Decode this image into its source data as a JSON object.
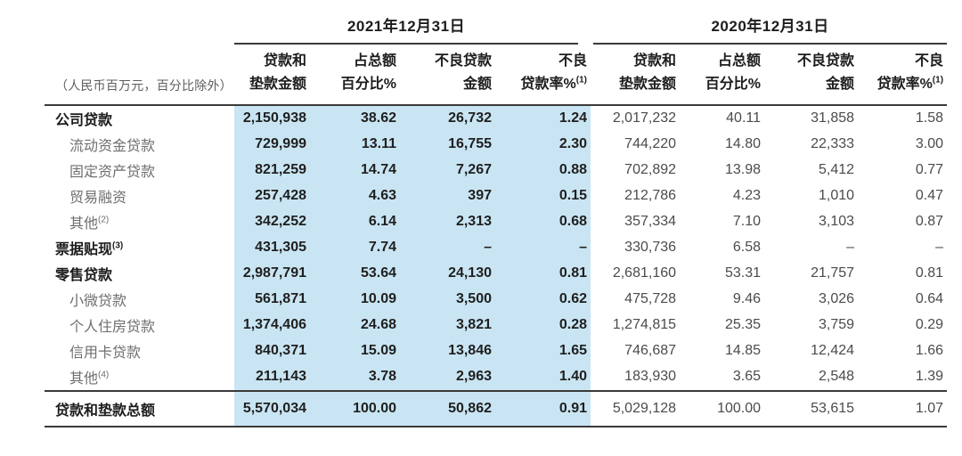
{
  "table": {
    "units_note": "（人民币百万元，百分比除外）",
    "periods": [
      {
        "label": "2021年12月31日"
      },
      {
        "label": "2020年12月31日"
      }
    ],
    "column_headers": [
      {
        "line1": "贷款和",
        "line2": "垫款金额",
        "footnote": ""
      },
      {
        "line1": "占总额",
        "line2": "百分比%",
        "footnote": ""
      },
      {
        "line1": "不良贷款",
        "line2": "金额",
        "footnote": ""
      },
      {
        "line1": "不良",
        "line2": "贷款率%",
        "footnote": "(1)"
      }
    ],
    "rows": [
      {
        "label": "公司贷款",
        "footnote": "",
        "bold": true,
        "indent": false,
        "total": false,
        "v2021": [
          "2,150,938",
          "38.62",
          "26,732",
          "1.24"
        ],
        "v2020": [
          "2,017,232",
          "40.11",
          "31,858",
          "1.58"
        ]
      },
      {
        "label": "流动资金贷款",
        "footnote": "",
        "bold": false,
        "indent": true,
        "total": false,
        "v2021": [
          "729,999",
          "13.11",
          "16,755",
          "2.30"
        ],
        "v2020": [
          "744,220",
          "14.80",
          "22,333",
          "3.00"
        ]
      },
      {
        "label": "固定资产贷款",
        "footnote": "",
        "bold": false,
        "indent": true,
        "total": false,
        "v2021": [
          "821,259",
          "14.74",
          "7,267",
          "0.88"
        ],
        "v2020": [
          "702,892",
          "13.98",
          "5,412",
          "0.77"
        ]
      },
      {
        "label": "贸易融资",
        "footnote": "",
        "bold": false,
        "indent": true,
        "total": false,
        "v2021": [
          "257,428",
          "4.63",
          "397",
          "0.15"
        ],
        "v2020": [
          "212,786",
          "4.23",
          "1,010",
          "0.47"
        ]
      },
      {
        "label": "其他",
        "footnote": "(2)",
        "bold": false,
        "indent": true,
        "total": false,
        "v2021": [
          "342,252",
          "6.14",
          "2,313",
          "0.68"
        ],
        "v2020": [
          "357,334",
          "7.10",
          "3,103",
          "0.87"
        ]
      },
      {
        "label": "票据贴现",
        "footnote": "(3)",
        "bold": true,
        "indent": false,
        "total": false,
        "v2021": [
          "431,305",
          "7.74",
          "–",
          "–"
        ],
        "v2020": [
          "330,736",
          "6.58",
          "–",
          "–"
        ]
      },
      {
        "label": "零售贷款",
        "footnote": "",
        "bold": true,
        "indent": false,
        "total": false,
        "v2021": [
          "2,987,791",
          "53.64",
          "24,130",
          "0.81"
        ],
        "v2020": [
          "2,681,160",
          "53.31",
          "21,757",
          "0.81"
        ]
      },
      {
        "label": "小微贷款",
        "footnote": "",
        "bold": false,
        "indent": true,
        "total": false,
        "v2021": [
          "561,871",
          "10.09",
          "3,500",
          "0.62"
        ],
        "v2020": [
          "475,728",
          "9.46",
          "3,026",
          "0.64"
        ]
      },
      {
        "label": "个人住房贷款",
        "footnote": "",
        "bold": false,
        "indent": true,
        "total": false,
        "v2021": [
          "1,374,406",
          "24.68",
          "3,821",
          "0.28"
        ],
        "v2020": [
          "1,274,815",
          "25.35",
          "3,759",
          "0.29"
        ]
      },
      {
        "label": "信用卡贷款",
        "footnote": "",
        "bold": false,
        "indent": true,
        "total": false,
        "v2021": [
          "840,371",
          "15.09",
          "13,846",
          "1.65"
        ],
        "v2020": [
          "746,687",
          "14.85",
          "12,424",
          "1.66"
        ]
      },
      {
        "label": "其他",
        "footnote": "(4)",
        "bold": false,
        "indent": true,
        "total": false,
        "v2021": [
          "211,143",
          "3.78",
          "2,963",
          "1.40"
        ],
        "v2020": [
          "183,930",
          "3.65",
          "2,548",
          "1.39"
        ]
      },
      {
        "label": "贷款和垫款总额",
        "footnote": "",
        "bold": true,
        "indent": false,
        "total": true,
        "v2021": [
          "5,570,034",
          "100.00",
          "50,862",
          "0.91"
        ],
        "v2020": [
          "5,029,128",
          "100.00",
          "53,615",
          "1.07"
        ]
      }
    ]
  },
  "colors": {
    "highlight_2021": "#c9e5f3",
    "rule_dark": "#3a3a3a",
    "text_primary": "#1c1c1c",
    "text_secondary_2020": "#4b4b4b",
    "text_muted_labels": "#6f6f6f"
  }
}
